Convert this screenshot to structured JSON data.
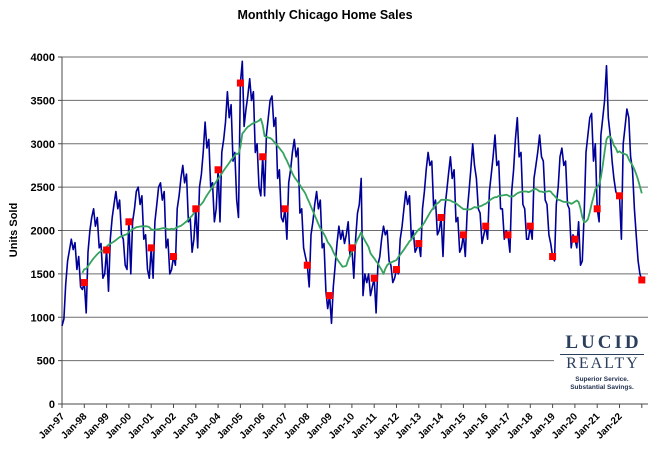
{
  "title": "Monthly Chicago Home Sales",
  "y_axis": {
    "label": "Units Sold",
    "tick_labels": [
      "0",
      "500",
      "1000",
      "1500",
      "2000",
      "2500",
      "3000",
      "3500",
      "4000"
    ]
  },
  "x_axis": {
    "tick_labels": [
      "Jan-97",
      "Jan-98",
      "Jan-99",
      "Jan-00",
      "Jan-01",
      "Jan-02",
      "Jan-03",
      "Jan-04",
      "Jan-05",
      "Jan-06",
      "Jan-07",
      "Jan-08",
      "Jan-09",
      "Jan-10",
      "Jan-11",
      "Jan-12",
      "Jan-13",
      "Jan-14",
      "Jan-15",
      "Jan-16",
      "Jan-17",
      "Jan-18",
      "Jan-19",
      "Jan-20",
      "Jan-21",
      "Jan-22"
    ]
  },
  "logo": {
    "name_line1": "LUCID",
    "name_line2": "REALTY",
    "tagline_line1": "Superior Service.",
    "tagline_line2": "Substantial Savings."
  },
  "colors": {
    "monthly_sales": "#000099",
    "moving_average": "#36A35F",
    "january_marker": "#FF0000",
    "gridline": "#6e6e6e",
    "axis": "#4a4a4a"
  },
  "chart_data": {
    "type": "line",
    "title": "Monthly Chicago Home Sales",
    "ylabel": "Units Sold",
    "ylim": [
      0,
      4000
    ],
    "y_tick_step": 500,
    "grid": "horizontal",
    "x_unit": "month",
    "x_start_label": "Jan-97",
    "x_end_label": "Jan-23",
    "x_tick_every_months": 12,
    "legend": "none",
    "series": [
      {
        "name": "monthly_sales",
        "type": "line",
        "color": "#000099",
        "values": [
          900,
          980,
          1380,
          1650,
          1770,
          1900,
          1780,
          1860,
          1550,
          1700,
          1350,
          1320,
          1400,
          1050,
          1750,
          2000,
          2150,
          2250,
          2050,
          2150,
          1800,
          1850,
          1450,
          1500,
          1775,
          1300,
          1900,
          2150,
          2300,
          2450,
          2250,
          2350,
          1950,
          1900,
          1600,
          1550,
          2100,
          1500,
          2100,
          2250,
          2450,
          2500,
          2300,
          2400,
          1900,
          1950,
          1550,
          1450,
          1800,
          1450,
          2100,
          2300,
          2500,
          2550,
          2350,
          2450,
          1800,
          1900,
          1500,
          1550,
          1700,
          1600,
          2250,
          2400,
          2600,
          2750,
          2550,
          2650,
          2100,
          2150,
          1750,
          1900,
          2250,
          1800,
          2500,
          2650,
          2900,
          3250,
          2950,
          3050,
          2500,
          2550,
          2100,
          2250,
          2700,
          2100,
          2900,
          3050,
          3250,
          3600,
          3300,
          3450,
          2800,
          2900,
          2350,
          2150,
          3700,
          3950,
          3200,
          3400,
          3550,
          3750,
          3500,
          3600,
          2900,
          3000,
          2500,
          2400,
          2850,
          2400,
          3100,
          3300,
          3500,
          3550,
          3200,
          3300,
          2600,
          2700,
          2150,
          2100,
          2250,
          1900,
          2550,
          2700,
          2900,
          3050,
          2850,
          2950,
          2200,
          2250,
          1800,
          1700,
          1600,
          1350,
          1950,
          2100,
          2300,
          2450,
          2250,
          2350,
          1800,
          1850,
          1300,
          1100,
          1250,
          930,
          1350,
          1600,
          1850,
          2050,
          1900,
          2000,
          1850,
          1950,
          2100,
          1700,
          1800,
          1450,
          1900,
          2200,
          2300,
          2600,
          1250,
          1500,
          1400,
          1500,
          1250,
          1350,
          1450,
          1050,
          1600,
          1700,
          1900,
          2050,
          1950,
          2000,
          1650,
          1600,
          1400,
          1450,
          1550,
          1500,
          1900,
          2050,
          2250,
          2450,
          2300,
          2400,
          1900,
          2000,
          1750,
          1800,
          1850,
          1700,
          2250,
          2450,
          2700,
          2900,
          2750,
          2800,
          2250,
          2350,
          1950,
          2000,
          2150,
          1700,
          2250,
          2450,
          2650,
          2850,
          2600,
          2700,
          2100,
          2150,
          1750,
          1800,
          1950,
          1700,
          2200,
          2450,
          2700,
          3000,
          2750,
          2600,
          2250,
          2200,
          1850,
          1950,
          2050,
          1900,
          2450,
          2650,
          2850,
          3100,
          2750,
          2800,
          2250,
          2250,
          1900,
          2000,
          1950,
          1750,
          2450,
          2700,
          3050,
          3300,
          2850,
          2900,
          2300,
          2250,
          1900,
          1900,
          2050,
          1900,
          2600,
          2750,
          2900,
          3100,
          2850,
          2800,
          2350,
          2300,
          1950,
          1850,
          1700,
          1650,
          2300,
          2500,
          2850,
          2950,
          2750,
          2800,
          2300,
          2250,
          1800,
          1950,
          1900,
          1800,
          2100,
          1600,
          1650,
          2200,
          2900,
          3100,
          3300,
          3350,
          2800,
          3000,
          2250,
          2100,
          3100,
          3300,
          3500,
          3900,
          3300,
          3100,
          2800,
          2600,
          2450,
          2400,
          2400,
          1900,
          3000,
          3200,
          3400,
          3300,
          2850,
          2700,
          2250,
          1950,
          1650,
          1500,
          1430
        ]
      },
      {
        "name": "12_month_moving_average",
        "type": "line",
        "color": "#36A35F",
        "derived_from": "monthly_sales",
        "window": 12
      },
      {
        "name": "january_markers",
        "type": "scatter-square",
        "color": "#FF0000",
        "month_index": [
          12,
          24,
          36,
          48,
          60,
          72,
          84,
          96,
          108,
          120,
          132,
          144,
          156,
          168,
          180,
          192,
          204,
          216,
          228,
          240,
          252,
          264,
          276,
          288,
          300,
          312
        ],
        "values": [
          1400,
          1775,
          2100,
          1800,
          1700,
          2250,
          2700,
          3700,
          2850,
          2250,
          1600,
          1250,
          1800,
          1450,
          1550,
          1850,
          2150,
          1950,
          2050,
          1950,
          2050,
          1700,
          1900,
          2250,
          2400,
          1430
        ]
      }
    ]
  }
}
